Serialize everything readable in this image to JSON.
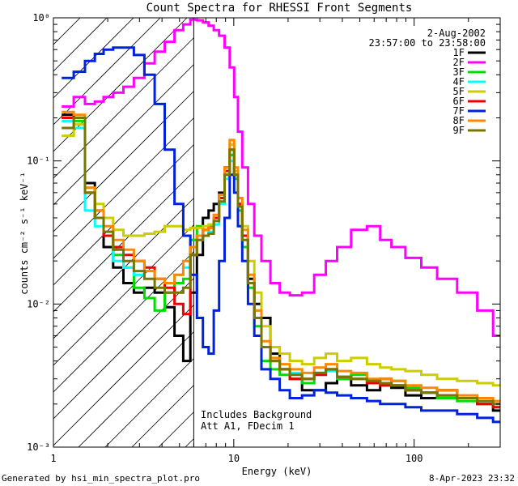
{
  "chart_data": {
    "type": "line",
    "title": "Count Spectra for RHESSI Front Segments",
    "xlabel": "Energy (keV)",
    "ylabel": "counts cm⁻² s⁻¹ keV⁻¹",
    "xscale": "log",
    "yscale": "log",
    "xlim": [
      1,
      300
    ],
    "ylim": [
      0.001,
      1.0
    ],
    "x_ticks": [
      {
        "value": 1,
        "label": "1"
      },
      {
        "value": 10,
        "label": "10"
      },
      {
        "value": 100,
        "label": "100"
      }
    ],
    "y_ticks": [
      {
        "value": 0.001,
        "label": "10⁻³"
      },
      {
        "value": 0.01,
        "label": "10⁻²"
      },
      {
        "value": 0.1,
        "label": "10⁻¹"
      },
      {
        "value": 1.0,
        "label": "10⁰"
      }
    ],
    "date": "2-Aug-2002",
    "time_range": "23:57:00 to 23:58:00",
    "hatched_region_keV": [
      1,
      6
    ],
    "marker_line_keV": 6,
    "annotation_lines": [
      "Includes Background",
      "Att A1, FDecim 1"
    ],
    "legend_position": "top-right",
    "series": [
      {
        "name": "1F",
        "color": "#000000",
        "x": [
          1.2,
          1.4,
          1.6,
          1.8,
          2.0,
          2.3,
          2.6,
          3.0,
          3.4,
          3.9,
          4.4,
          5.0,
          5.5,
          6.0,
          6.5,
          7.0,
          7.5,
          8.0,
          8.6,
          9.2,
          9.8,
          10.3,
          10.8,
          11.5,
          12.5,
          13.5,
          15,
          17,
          19,
          22,
          26,
          30,
          35,
          40,
          50,
          60,
          70,
          80,
          100,
          120,
          150,
          200,
          250,
          300
        ],
        "y": [
          0.21,
          0.2,
          0.07,
          0.045,
          0.025,
          0.018,
          0.014,
          0.012,
          0.013,
          0.012,
          0.0095,
          0.006,
          0.004,
          0.012,
          0.022,
          0.04,
          0.045,
          0.05,
          0.06,
          0.09,
          0.11,
          0.08,
          0.05,
          0.03,
          0.015,
          0.01,
          0.008,
          0.0045,
          0.0035,
          0.003,
          0.0025,
          0.0025,
          0.0028,
          0.003,
          0.0027,
          0.0025,
          0.003,
          0.0026,
          0.0023,
          0.0022,
          0.0025,
          0.0022,
          0.002,
          0.0018
        ]
      },
      {
        "name": "2F",
        "color": "#ff00ff",
        "x": [
          1.2,
          1.4,
          1.6,
          1.8,
          2.0,
          2.3,
          2.6,
          3.0,
          3.4,
          3.9,
          4.4,
          5.0,
          5.5,
          6.0,
          6.5,
          7.0,
          7.5,
          8.0,
          8.6,
          9.2,
          9.8,
          10.3,
          10.8,
          11.5,
          12.5,
          13.5,
          15,
          17,
          19,
          22,
          26,
          30,
          35,
          40,
          50,
          60,
          70,
          80,
          100,
          120,
          150,
          200,
          250,
          300
        ],
        "y": [
          0.24,
          0.28,
          0.25,
          0.26,
          0.28,
          0.3,
          0.33,
          0.38,
          0.48,
          0.58,
          0.68,
          0.82,
          0.9,
          0.97,
          0.96,
          0.93,
          0.88,
          0.82,
          0.75,
          0.62,
          0.45,
          0.28,
          0.16,
          0.09,
          0.05,
          0.03,
          0.02,
          0.014,
          0.012,
          0.0115,
          0.012,
          0.016,
          0.02,
          0.025,
          0.033,
          0.035,
          0.028,
          0.025,
          0.021,
          0.018,
          0.015,
          0.012,
          0.009,
          0.006
        ]
      },
      {
        "name": "3F",
        "color": "#00dd00",
        "x": [
          1.2,
          1.4,
          1.6,
          1.8,
          2.0,
          2.3,
          2.6,
          3.0,
          3.4,
          3.9,
          4.4,
          5.0,
          5.5,
          6.0,
          6.5,
          7.0,
          7.5,
          8.0,
          8.6,
          9.2,
          9.8,
          10.3,
          10.8,
          11.5,
          12.5,
          13.5,
          15,
          17,
          19,
          22,
          26,
          30,
          35,
          40,
          50,
          60,
          70,
          80,
          100,
          120,
          150,
          200,
          250,
          300
        ],
        "y": [
          0.2,
          0.19,
          0.065,
          0.04,
          0.03,
          0.022,
          0.018,
          0.013,
          0.011,
          0.009,
          0.012,
          0.014,
          0.015,
          0.028,
          0.035,
          0.033,
          0.035,
          0.04,
          0.055,
          0.08,
          0.11,
          0.075,
          0.045,
          0.025,
          0.013,
          0.007,
          0.004,
          0.0035,
          0.0032,
          0.003,
          0.0028,
          0.0033,
          0.0035,
          0.003,
          0.0032,
          0.0028,
          0.0027,
          0.0029,
          0.0026,
          0.0024,
          0.0022,
          0.0021,
          0.002,
          0.0019
        ]
      },
      {
        "name": "4F",
        "color": "#00ffff",
        "x": [
          1.2,
          1.4,
          1.6,
          1.8,
          2.0,
          2.3,
          2.6,
          3.0,
          3.4,
          3.9,
          4.4,
          5.0,
          5.5,
          6.0,
          6.5,
          7.0,
          7.5,
          8.0,
          8.6,
          9.2,
          9.8,
          10.3,
          10.8,
          11.5,
          12.5,
          13.5,
          15,
          17,
          19,
          22,
          26,
          30,
          35,
          40,
          50,
          60,
          70,
          80,
          100,
          120,
          150,
          200,
          250,
          300
        ],
        "y": [
          0.19,
          0.17,
          0.045,
          0.035,
          0.03,
          0.02,
          0.018,
          0.016,
          0.017,
          0.015,
          0.014,
          0.016,
          0.018,
          0.022,
          0.028,
          0.03,
          0.032,
          0.036,
          0.05,
          0.075,
          0.1,
          0.08,
          0.05,
          0.03,
          0.014,
          0.009,
          0.005,
          0.004,
          0.0035,
          0.0033,
          0.003,
          0.0032,
          0.0034,
          0.0031,
          0.003,
          0.0029,
          0.0028,
          0.0027,
          0.0025,
          0.0024,
          0.0023,
          0.0022,
          0.0021,
          0.002
        ]
      },
      {
        "name": "5F",
        "color": "#cccc00",
        "x": [
          1.2,
          1.4,
          1.6,
          1.8,
          2.0,
          2.3,
          2.6,
          3.0,
          3.4,
          3.9,
          4.4,
          5.0,
          5.5,
          6.0,
          6.5,
          7.0,
          7.5,
          8.0,
          8.6,
          9.2,
          9.8,
          10.3,
          10.8,
          11.5,
          12.5,
          13.5,
          15,
          17,
          19,
          22,
          26,
          30,
          35,
          40,
          50,
          60,
          70,
          80,
          100,
          120,
          150,
          200,
          250,
          300
        ],
        "y": [
          0.15,
          0.18,
          0.06,
          0.05,
          0.04,
          0.033,
          0.03,
          0.03,
          0.031,
          0.032,
          0.035,
          0.035,
          0.033,
          0.034,
          0.034,
          0.035,
          0.036,
          0.04,
          0.055,
          0.08,
          0.13,
          0.085,
          0.055,
          0.035,
          0.02,
          0.012,
          0.007,
          0.005,
          0.0045,
          0.004,
          0.0038,
          0.0042,
          0.0045,
          0.004,
          0.0042,
          0.0038,
          0.0036,
          0.0035,
          0.0034,
          0.0032,
          0.003,
          0.0029,
          0.0028,
          0.0027
        ]
      },
      {
        "name": "6F",
        "color": "#ee0000",
        "x": [
          1.2,
          1.4,
          1.6,
          1.8,
          2.0,
          2.3,
          2.6,
          3.0,
          3.4,
          3.9,
          4.4,
          5.0,
          5.5,
          6.0,
          6.5,
          7.0,
          7.5,
          8.0,
          8.6,
          9.2,
          9.8,
          10.3,
          10.8,
          11.5,
          12.5,
          13.5,
          15,
          17,
          19,
          22,
          26,
          30,
          35,
          40,
          50,
          60,
          70,
          80,
          100,
          120,
          150,
          200,
          250,
          300
        ],
        "y": [
          0.2,
          0.2,
          0.06,
          0.04,
          0.03,
          0.025,
          0.022,
          0.02,
          0.018,
          0.015,
          0.013,
          0.01,
          0.0085,
          0.022,
          0.03,
          0.033,
          0.034,
          0.04,
          0.055,
          0.085,
          0.12,
          0.08,
          0.05,
          0.03,
          0.014,
          0.008,
          0.005,
          0.004,
          0.0035,
          0.003,
          0.003,
          0.0032,
          0.0035,
          0.0031,
          0.003,
          0.0028,
          0.0027,
          0.0027,
          0.0025,
          0.0024,
          0.0023,
          0.0022,
          0.002,
          0.0019
        ]
      },
      {
        "name": "7F",
        "color": "#0022dd",
        "x": [
          1.2,
          1.4,
          1.6,
          1.8,
          2.0,
          2.3,
          2.6,
          3.0,
          3.4,
          3.9,
          4.4,
          5.0,
          5.5,
          6.0,
          6.5,
          7.0,
          7.5,
          8.0,
          8.6,
          9.2,
          9.8,
          10.3,
          10.8,
          11.5,
          12.5,
          13.5,
          15,
          17,
          19,
          22,
          26,
          30,
          35,
          40,
          50,
          60,
          70,
          80,
          100,
          120,
          150,
          200,
          250,
          300
        ],
        "y": [
          0.38,
          0.42,
          0.5,
          0.56,
          0.6,
          0.62,
          0.62,
          0.55,
          0.4,
          0.25,
          0.12,
          0.05,
          0.03,
          0.016,
          0.008,
          0.005,
          0.0045,
          0.009,
          0.02,
          0.04,
          0.08,
          0.06,
          0.035,
          0.02,
          0.01,
          0.006,
          0.0035,
          0.003,
          0.0025,
          0.0022,
          0.0023,
          0.0025,
          0.0024,
          0.0023,
          0.0022,
          0.0021,
          0.002,
          0.002,
          0.0019,
          0.0018,
          0.0018,
          0.0017,
          0.0016,
          0.0015
        ]
      },
      {
        "name": "8F",
        "color": "#ff8800",
        "x": [
          1.2,
          1.4,
          1.6,
          1.8,
          2.0,
          2.3,
          2.6,
          3.0,
          3.4,
          3.9,
          4.4,
          5.0,
          5.5,
          6.0,
          6.5,
          7.0,
          7.5,
          8.0,
          8.6,
          9.2,
          9.8,
          10.3,
          10.8,
          11.5,
          12.5,
          13.5,
          15,
          17,
          19,
          22,
          26,
          30,
          35,
          40,
          50,
          60,
          70,
          80,
          100,
          120,
          150,
          200,
          250,
          300
        ],
        "y": [
          0.22,
          0.21,
          0.065,
          0.045,
          0.035,
          0.028,
          0.024,
          0.02,
          0.017,
          0.015,
          0.014,
          0.016,
          0.02,
          0.025,
          0.03,
          0.033,
          0.034,
          0.042,
          0.058,
          0.09,
          0.14,
          0.09,
          0.055,
          0.033,
          0.016,
          0.009,
          0.0055,
          0.0042,
          0.0038,
          0.0035,
          0.0033,
          0.0036,
          0.0038,
          0.0034,
          0.0033,
          0.003,
          0.003,
          0.0029,
          0.0027,
          0.0026,
          0.0025,
          0.0023,
          0.0022,
          0.0021
        ]
      },
      {
        "name": "9F",
        "color": "#777700",
        "x": [
          1.2,
          1.4,
          1.6,
          1.8,
          2.0,
          2.3,
          2.6,
          3.0,
          3.4,
          3.9,
          4.4,
          5.0,
          5.5,
          6.0,
          6.5,
          7.0,
          7.5,
          8.0,
          8.6,
          9.2,
          9.8,
          10.3,
          10.8,
          11.5,
          12.5,
          13.5,
          15,
          17,
          19,
          22,
          26,
          30,
          35,
          40,
          50,
          60,
          70,
          80,
          100,
          120,
          150,
          200,
          250,
          300
        ],
        "y": [
          0.17,
          0.2,
          0.06,
          0.04,
          0.032,
          0.024,
          0.02,
          0.017,
          0.015,
          0.013,
          0.012,
          0.012,
          0.013,
          0.022,
          0.028,
          0.03,
          0.031,
          0.038,
          0.052,
          0.08,
          0.12,
          0.08,
          0.048,
          0.028,
          0.014,
          0.008,
          0.005,
          0.004,
          0.0035,
          0.0032,
          0.003,
          0.0033,
          0.0035,
          0.0031,
          0.003,
          0.0029,
          0.0028,
          0.0027,
          0.0025,
          0.0024,
          0.0023,
          0.0022,
          0.0021,
          0.002
        ]
      }
    ]
  },
  "footer": {
    "generated_by": "Generated by hsi_min_spectra_plot.pro",
    "timestamp": "8-Apr-2023 23:32"
  }
}
